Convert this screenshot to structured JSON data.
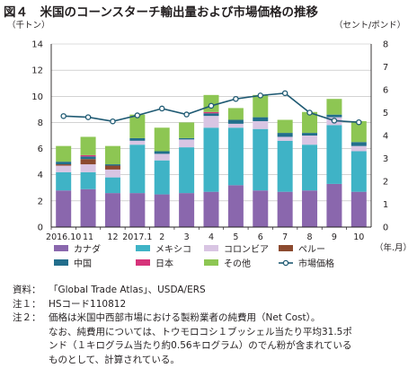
{
  "figure": {
    "title": "図４　米国のコーンスターチ輸出量および市場価格の推移"
  },
  "notes": {
    "source_label": "資料：",
    "source_text": "「Global Trade Atlas」、USDA/ERS",
    "note1_label": "注１：",
    "note1_text": "HSコード110812",
    "note2_label": "注２：",
    "note2_line1": "価格は米国中西部市場における製粉業者の純費用（Net Cost）。",
    "note2_line2": "なお、純費用については、トウモロコシ１ブッシェル当たり平均31.5ポ",
    "note2_line3": "ンド（１キログラム当たり約0.56キログラム）のでん粉が含まれている",
    "note2_line4": "ものとして、計算されている。"
  },
  "chart_data": {
    "type": "bar",
    "stacked": true,
    "left_unit": "（千トン）",
    "right_unit": "（セント/ポンド）",
    "x_unit": "（年.月）",
    "categories": [
      "2016.10",
      "11",
      "12",
      "2017.1",
      "2",
      "3",
      "4",
      "5",
      "6",
      "7",
      "8",
      "9",
      "10"
    ],
    "y_left": {
      "min": 0,
      "max": 14,
      "ticks": [
        0,
        2,
        4,
        6,
        8,
        10,
        12,
        14
      ]
    },
    "y_right": {
      "min": 0,
      "max": 8,
      "ticks": [
        0,
        1,
        2,
        3,
        4,
        5,
        6,
        7,
        8
      ]
    },
    "grid": true,
    "legend_position": "bottom",
    "series": [
      {
        "name": "カナダ",
        "color": "#8a67ad",
        "values": [
          2.8,
          2.9,
          2.6,
          2.6,
          2.5,
          2.6,
          2.7,
          3.2,
          2.8,
          2.7,
          2.8,
          3.3,
          2.7
        ]
      },
      {
        "name": "メキシコ",
        "color": "#3fb3c6",
        "values": [
          1.4,
          1.3,
          1.2,
          3.7,
          2.6,
          3.5,
          4.9,
          4.4,
          4.7,
          3.9,
          3.5,
          4.5,
          3.1
        ]
      },
      {
        "name": "コロンビア",
        "color": "#d9c5e3",
        "values": [
          0.5,
          0.6,
          0.6,
          0.3,
          0.5,
          0.6,
          0.9,
          0.3,
          0.6,
          0.3,
          0.7,
          0.6,
          0.4
        ]
      },
      {
        "name": "ペルー",
        "color": "#8c4a2f",
        "values": [
          0.1,
          0.4,
          0.3,
          0.0,
          0.0,
          0.0,
          0.0,
          0.0,
          0.0,
          0.0,
          0.0,
          0.0,
          0.0
        ]
      },
      {
        "name": "中国",
        "color": "#226e8c",
        "values": [
          0.2,
          0.2,
          0.1,
          0.2,
          0.2,
          0.1,
          0.2,
          0.3,
          0.3,
          0.3,
          0.2,
          0.2,
          0.3
        ]
      },
      {
        "name": "日本",
        "color": "#d6337a",
        "values": [
          0.0,
          0.1,
          0.0,
          0.0,
          0.0,
          0.0,
          0.1,
          0.0,
          0.0,
          0.0,
          0.0,
          0.0,
          0.0
        ]
      },
      {
        "name": "その他",
        "color": "#8dc653",
        "values": [
          1.2,
          1.4,
          1.4,
          1.8,
          1.8,
          1.2,
          1.3,
          0.9,
          1.7,
          1.0,
          1.6,
          1.2,
          1.6
        ]
      }
    ],
    "line_series": {
      "name": "市場価格",
      "axis": "right",
      "color": "#1f5a73",
      "values": [
        4.85,
        4.8,
        4.62,
        4.88,
        5.18,
        4.92,
        5.3,
        5.6,
        5.75,
        5.85,
        5.0,
        4.65,
        4.58
      ]
    }
  }
}
